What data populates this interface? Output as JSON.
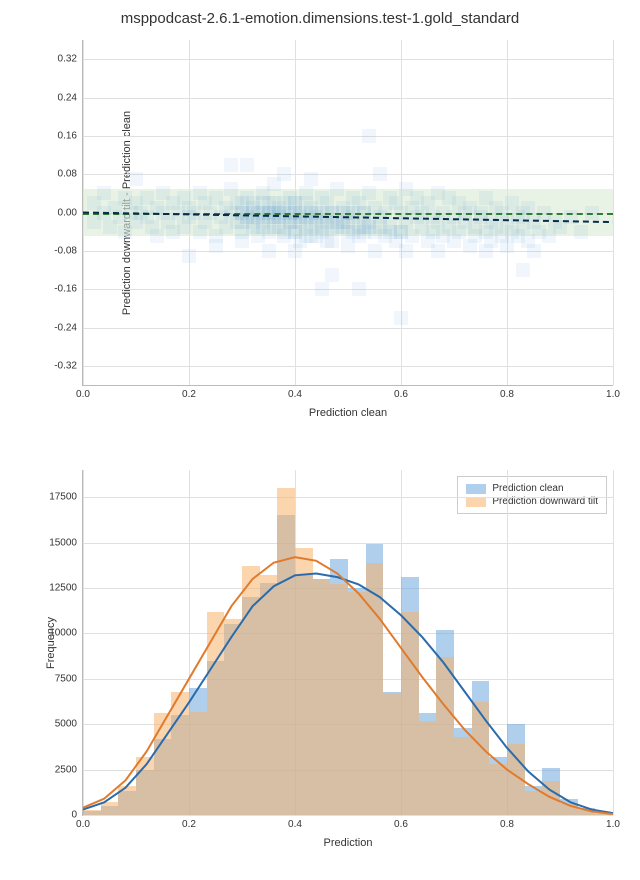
{
  "title": "msppodcast-2.6.1-emotion.dimensions.test-1.gold_standard",
  "panel_top": {
    "xlabel": "Prediction clean",
    "ylabel": "Prediction downward tilt - Prediction clean",
    "xlim": [
      0.0,
      1.0
    ],
    "ylim": [
      -0.36,
      0.36
    ],
    "xticks": [
      0.0,
      0.2,
      0.4,
      0.6,
      0.8,
      1.0
    ],
    "yticks": [
      -0.32,
      -0.24,
      -0.16,
      -0.08,
      0.0,
      0.08,
      0.16,
      0.24,
      0.32
    ],
    "grid_color": "#e0e0e0",
    "background_color": "#ffffff",
    "band": {
      "ymin": -0.05,
      "ymax": 0.05,
      "color": "#d9ead3",
      "opacity": 0.6
    },
    "ref_line": {
      "y": 0.0,
      "color": "#2e7d32",
      "width": 2,
      "dash": true
    },
    "trend_line": {
      "slope": -0.02,
      "intercept": 0.0,
      "color": "#0b2b4a",
      "width": 2,
      "dash": true
    },
    "scatter": {
      "color": "#6fa8dc",
      "opacity": 0.1,
      "marker_size": 14,
      "shape": "square",
      "points": [
        [
          0.02,
          0.02
        ],
        [
          0.02,
          -0.02
        ],
        [
          0.04,
          0.0
        ],
        [
          0.04,
          0.04
        ],
        [
          0.05,
          -0.03
        ],
        [
          0.06,
          0.01
        ],
        [
          0.07,
          -0.01
        ],
        [
          0.08,
          0.03
        ],
        [
          0.08,
          -0.04
        ],
        [
          0.09,
          0.0
        ],
        [
          0.1,
          0.02
        ],
        [
          0.1,
          -0.02
        ],
        [
          0.1,
          0.07
        ],
        [
          0.11,
          0.0
        ],
        [
          0.12,
          -0.01
        ],
        [
          0.12,
          0.03
        ],
        [
          0.13,
          -0.03
        ],
        [
          0.14,
          0.01
        ],
        [
          0.14,
          -0.05
        ],
        [
          0.15,
          0.0
        ],
        [
          0.15,
          0.04
        ],
        [
          0.16,
          -0.02
        ],
        [
          0.17,
          0.02
        ],
        [
          0.17,
          -0.04
        ],
        [
          0.18,
          0.0
        ],
        [
          0.19,
          0.03
        ],
        [
          0.19,
          -0.03
        ],
        [
          0.2,
          0.01
        ],
        [
          0.2,
          -0.01
        ],
        [
          0.2,
          -0.09
        ],
        [
          0.21,
          0.0
        ],
        [
          0.22,
          0.04
        ],
        [
          0.22,
          -0.04
        ],
        [
          0.23,
          0.02
        ],
        [
          0.23,
          -0.02
        ],
        [
          0.24,
          0.0
        ],
        [
          0.25,
          -0.05
        ],
        [
          0.25,
          0.03
        ],
        [
          0.25,
          -0.07
        ],
        [
          0.26,
          -0.01
        ],
        [
          0.27,
          0.01
        ],
        [
          0.27,
          -0.03
        ],
        [
          0.28,
          0.0
        ],
        [
          0.28,
          0.05
        ],
        [
          0.28,
          0.1
        ],
        [
          0.29,
          -0.02
        ],
        [
          0.29,
          0.02
        ],
        [
          0.3,
          -0.04
        ],
        [
          0.3,
          0.0
        ],
        [
          0.3,
          -0.06
        ],
        [
          0.31,
          0.1
        ],
        [
          0.31,
          0.03
        ],
        [
          0.31,
          -0.01
        ],
        [
          0.32,
          -0.03
        ],
        [
          0.32,
          0.01
        ],
        [
          0.33,
          0.0
        ],
        [
          0.33,
          -0.05
        ],
        [
          0.34,
          0.04
        ],
        [
          0.34,
          -0.02
        ],
        [
          0.35,
          0.02
        ],
        [
          0.35,
          -0.04
        ],
        [
          0.35,
          0.0
        ],
        [
          0.36,
          -0.01
        ],
        [
          0.36,
          0.06
        ],
        [
          0.37,
          -0.03
        ],
        [
          0.37,
          0.01
        ],
        [
          0.38,
          0.08
        ],
        [
          0.38,
          -0.05
        ],
        [
          0.38,
          0.0
        ],
        [
          0.39,
          0.03
        ],
        [
          0.39,
          -0.02
        ],
        [
          0.4,
          -0.04
        ],
        [
          0.4,
          0.02
        ],
        [
          0.4,
          0.0
        ],
        [
          0.41,
          -0.06
        ],
        [
          0.41,
          -0.01
        ],
        [
          0.42,
          0.04
        ],
        [
          0.42,
          -0.03
        ],
        [
          0.43,
          0.01
        ],
        [
          0.43,
          -0.05
        ],
        [
          0.43,
          0.07
        ],
        [
          0.44,
          0.0
        ],
        [
          0.44,
          -0.02
        ],
        [
          0.45,
          0.03
        ],
        [
          0.45,
          -0.04
        ],
        [
          0.45,
          -0.16
        ],
        [
          0.46,
          -0.01
        ],
        [
          0.46,
          0.02
        ],
        [
          0.47,
          -0.06
        ],
        [
          0.47,
          0.0
        ],
        [
          0.47,
          -0.13
        ],
        [
          0.48,
          -0.03
        ],
        [
          0.48,
          0.05
        ],
        [
          0.49,
          -0.02
        ],
        [
          0.49,
          0.01
        ],
        [
          0.5,
          -0.04
        ],
        [
          0.5,
          0.0
        ],
        [
          0.5,
          -0.07
        ],
        [
          0.51,
          0.03
        ],
        [
          0.51,
          -0.01
        ],
        [
          0.52,
          -0.05
        ],
        [
          0.52,
          0.02
        ],
        [
          0.52,
          -0.16
        ],
        [
          0.53,
          0.0
        ],
        [
          0.53,
          -0.03
        ],
        [
          0.54,
          0.16
        ],
        [
          0.54,
          -0.02
        ],
        [
          0.54,
          0.04
        ],
        [
          0.55,
          -0.04
        ],
        [
          0.55,
          0.01
        ],
        [
          0.55,
          -0.08
        ],
        [
          0.56,
          0.08
        ],
        [
          0.56,
          -0.01
        ],
        [
          0.57,
          0.0
        ],
        [
          0.57,
          -0.05
        ],
        [
          0.58,
          0.03
        ],
        [
          0.58,
          -0.03
        ],
        [
          0.59,
          -0.06
        ],
        [
          0.59,
          0.02
        ],
        [
          0.6,
          0.0
        ],
        [
          0.6,
          -0.04
        ],
        [
          0.6,
          -0.22
        ],
        [
          0.61,
          -0.02
        ],
        [
          0.61,
          0.05
        ],
        [
          0.61,
          -0.08
        ],
        [
          0.62,
          0.01
        ],
        [
          0.62,
          -0.05
        ],
        [
          0.63,
          -0.01
        ],
        [
          0.63,
          0.03
        ],
        [
          0.64,
          -0.03
        ],
        [
          0.64,
          0.0
        ],
        [
          0.65,
          -0.06
        ],
        [
          0.65,
          0.02
        ],
        [
          0.66,
          -0.04
        ],
        [
          0.66,
          -0.01
        ],
        [
          0.67,
          0.04
        ],
        [
          0.67,
          -0.02
        ],
        [
          0.67,
          -0.08
        ],
        [
          0.68,
          0.0
        ],
        [
          0.68,
          -0.05
        ],
        [
          0.69,
          0.03
        ],
        [
          0.69,
          -0.03
        ],
        [
          0.7,
          -0.01
        ],
        [
          0.7,
          -0.06
        ],
        [
          0.71,
          0.02
        ],
        [
          0.71,
          -0.04
        ],
        [
          0.72,
          0.0
        ],
        [
          0.72,
          -0.02
        ],
        [
          0.73,
          -0.07
        ],
        [
          0.73,
          0.01
        ],
        [
          0.74,
          -0.03
        ],
        [
          0.74,
          -0.05
        ],
        [
          0.75,
          0.0
        ],
        [
          0.75,
          -0.01
        ],
        [
          0.76,
          -0.04
        ],
        [
          0.76,
          0.03
        ],
        [
          0.76,
          -0.08
        ],
        [
          0.77,
          -0.02
        ],
        [
          0.77,
          -0.06
        ],
        [
          0.78,
          0.01
        ],
        [
          0.78,
          -0.03
        ],
        [
          0.79,
          -0.05
        ],
        [
          0.79,
          0.0
        ],
        [
          0.8,
          -0.02
        ],
        [
          0.8,
          -0.07
        ],
        [
          0.81,
          0.02
        ],
        [
          0.81,
          -0.04
        ],
        [
          0.82,
          -0.01
        ],
        [
          0.82,
          -0.05
        ],
        [
          0.83,
          0.0
        ],
        [
          0.83,
          -0.12
        ],
        [
          0.83,
          -0.03
        ],
        [
          0.84,
          -0.06
        ],
        [
          0.84,
          0.01
        ],
        [
          0.85,
          -0.02
        ],
        [
          0.85,
          -0.08
        ],
        [
          0.86,
          -0.04
        ],
        [
          0.87,
          0.0
        ],
        [
          0.88,
          -0.05
        ],
        [
          0.89,
          -0.02
        ],
        [
          0.9,
          -0.03
        ],
        [
          0.92,
          -0.01
        ],
        [
          0.94,
          -0.04
        ],
        [
          0.96,
          0.0
        ],
        [
          0.35,
          -0.08
        ],
        [
          0.4,
          -0.08
        ],
        [
          0.3,
          0.0
        ],
        [
          0.32,
          0.0
        ],
        [
          0.34,
          0.0
        ],
        [
          0.36,
          0.0
        ],
        [
          0.38,
          -0.01
        ],
        [
          0.4,
          -0.01
        ],
        [
          0.42,
          -0.01
        ],
        [
          0.44,
          -0.01
        ],
        [
          0.46,
          -0.02
        ],
        [
          0.48,
          -0.02
        ],
        [
          0.5,
          -0.02
        ],
        [
          0.52,
          -0.03
        ],
        [
          0.54,
          -0.03
        ],
        [
          0.56,
          -0.03
        ],
        [
          0.58,
          -0.04
        ],
        [
          0.6,
          -0.04
        ],
        [
          0.3,
          -0.02
        ],
        [
          0.32,
          -0.02
        ],
        [
          0.34,
          -0.03
        ],
        [
          0.36,
          -0.03
        ],
        [
          0.38,
          -0.04
        ],
        [
          0.4,
          -0.04
        ],
        [
          0.42,
          -0.05
        ],
        [
          0.44,
          -0.05
        ],
        [
          0.46,
          -0.06
        ],
        [
          0.3,
          0.02
        ],
        [
          0.32,
          0.02
        ],
        [
          0.34,
          0.02
        ],
        [
          0.36,
          0.02
        ],
        [
          0.38,
          0.02
        ],
        [
          0.4,
          0.02
        ],
        [
          0.42,
          0.02
        ],
        [
          0.35,
          0.0
        ],
        [
          0.37,
          0.0
        ],
        [
          0.39,
          0.0
        ],
        [
          0.41,
          0.0
        ],
        [
          0.43,
          0.0
        ],
        [
          0.45,
          0.0
        ],
        [
          0.47,
          0.0
        ],
        [
          0.49,
          0.0
        ],
        [
          0.51,
          0.0
        ],
        [
          0.53,
          0.0
        ],
        [
          0.31,
          -0.01
        ],
        [
          0.33,
          -0.01
        ],
        [
          0.35,
          -0.01
        ],
        [
          0.37,
          -0.01
        ],
        [
          0.39,
          -0.02
        ],
        [
          0.41,
          -0.02
        ],
        [
          0.43,
          -0.02
        ],
        [
          0.45,
          -0.03
        ],
        [
          0.47,
          -0.03
        ],
        [
          0.49,
          -0.03
        ],
        [
          0.51,
          -0.04
        ],
        [
          0.53,
          -0.04
        ]
      ]
    }
  },
  "panel_bottom": {
    "xlabel": "Prediction",
    "ylabel": "Frequency",
    "xlim": [
      0.0,
      1.0
    ],
    "ylim": [
      0,
      19000
    ],
    "xticks": [
      0.0,
      0.2,
      0.4,
      0.6,
      0.8,
      1.0
    ],
    "yticks": [
      0,
      2500,
      5000,
      7500,
      10000,
      12500,
      15000,
      17500
    ],
    "grid_color": "#e0e0e0",
    "background_color": "#ffffff",
    "bar_width": 0.033,
    "legend": {
      "position": "top-right",
      "items": [
        {
          "label": "Prediction clean",
          "color": "#6fa8dc"
        },
        {
          "label": "Prediction downward tilt",
          "color": "#f6b26b"
        }
      ]
    },
    "hist_clean": {
      "color": "#6fa8dc",
      "opacity": 0.55,
      "bin_centers": [
        0.017,
        0.05,
        0.083,
        0.117,
        0.15,
        0.183,
        0.217,
        0.25,
        0.283,
        0.317,
        0.35,
        0.383,
        0.417,
        0.45,
        0.483,
        0.517,
        0.55,
        0.583,
        0.617,
        0.65,
        0.683,
        0.717,
        0.75,
        0.783,
        0.817,
        0.85,
        0.883,
        0.917,
        0.95,
        0.983
      ],
      "counts": [
        200,
        500,
        1300,
        2500,
        4200,
        5500,
        7000,
        8500,
        10500,
        12000,
        12800,
        16500,
        13200,
        13000,
        14100,
        12500,
        14900,
        6800,
        13100,
        5600,
        10200,
        4800,
        7400,
        3200,
        5000,
        1600,
        2600,
        900,
        400,
        100
      ]
    },
    "hist_tilt": {
      "color": "#f6b26b",
      "opacity": 0.55,
      "bin_centers": [
        0.017,
        0.05,
        0.083,
        0.117,
        0.15,
        0.183,
        0.217,
        0.25,
        0.283,
        0.317,
        0.35,
        0.383,
        0.417,
        0.45,
        0.483,
        0.517,
        0.55,
        0.583,
        0.617,
        0.65,
        0.683,
        0.717,
        0.75,
        0.783,
        0.817,
        0.85,
        0.883,
        0.917,
        0.95,
        0.983
      ],
      "counts": [
        300,
        700,
        1600,
        3200,
        5600,
        6800,
        5700,
        11200,
        10800,
        13700,
        13200,
        18000,
        14700,
        13000,
        12700,
        12300,
        13900,
        6700,
        11200,
        5200,
        8700,
        4300,
        6200,
        2800,
        3900,
        1300,
        1900,
        600,
        250,
        50
      ]
    },
    "kde_clean": {
      "color": "#2a6bab",
      "width": 2,
      "points": [
        [
          0.0,
          300
        ],
        [
          0.04,
          700
        ],
        [
          0.08,
          1500
        ],
        [
          0.12,
          2800
        ],
        [
          0.16,
          4500
        ],
        [
          0.2,
          6200
        ],
        [
          0.24,
          8000
        ],
        [
          0.28,
          9800
        ],
        [
          0.32,
          11500
        ],
        [
          0.36,
          12600
        ],
        [
          0.4,
          13200
        ],
        [
          0.44,
          13300
        ],
        [
          0.48,
          13100
        ],
        [
          0.52,
          12700
        ],
        [
          0.56,
          12000
        ],
        [
          0.6,
          11000
        ],
        [
          0.64,
          9800
        ],
        [
          0.68,
          8400
        ],
        [
          0.72,
          6800
        ],
        [
          0.76,
          5200
        ],
        [
          0.8,
          3700
        ],
        [
          0.84,
          2400
        ],
        [
          0.88,
          1400
        ],
        [
          0.92,
          700
        ],
        [
          0.96,
          300
        ],
        [
          1.0,
          100
        ]
      ]
    },
    "kde_tilt": {
      "color": "#e07b2e",
      "width": 2,
      "points": [
        [
          0.0,
          400
        ],
        [
          0.04,
          900
        ],
        [
          0.08,
          1900
        ],
        [
          0.12,
          3500
        ],
        [
          0.16,
          5500
        ],
        [
          0.2,
          7500
        ],
        [
          0.24,
          9500
        ],
        [
          0.28,
          11500
        ],
        [
          0.32,
          13000
        ],
        [
          0.36,
          13900
        ],
        [
          0.4,
          14200
        ],
        [
          0.44,
          14000
        ],
        [
          0.48,
          13300
        ],
        [
          0.52,
          12200
        ],
        [
          0.56,
          10800
        ],
        [
          0.6,
          9200
        ],
        [
          0.64,
          7600
        ],
        [
          0.68,
          6100
        ],
        [
          0.72,
          4700
        ],
        [
          0.76,
          3500
        ],
        [
          0.8,
          2500
        ],
        [
          0.84,
          1700
        ],
        [
          0.88,
          1000
        ],
        [
          0.92,
          500
        ],
        [
          0.96,
          200
        ],
        [
          1.0,
          50
        ]
      ]
    }
  }
}
